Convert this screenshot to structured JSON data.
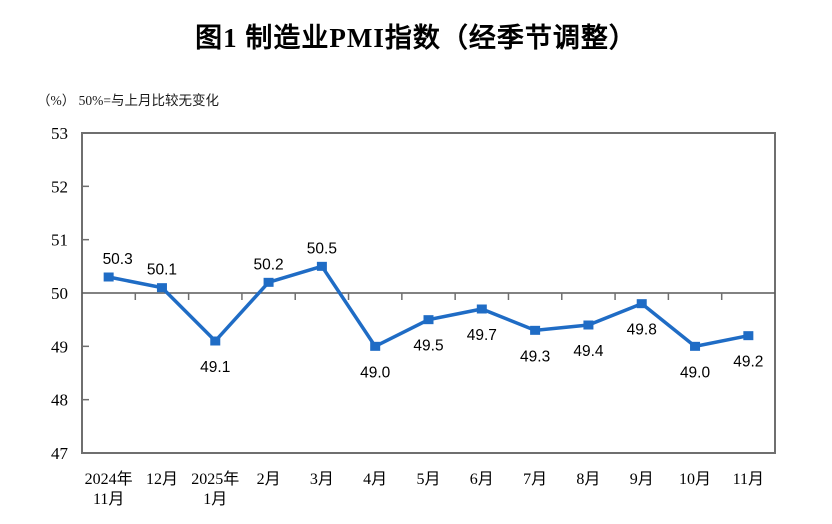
{
  "chart_data": {
    "type": "line",
    "title": "图1  制造业PMI指数（经季节调整）",
    "unit_note": "（%） 50%=与上月比较无变化",
    "categories": [
      "2024年\n11月",
      "12月",
      "2025年\n1月",
      "2月",
      "3月",
      "4月",
      "5月",
      "6月",
      "7月",
      "8月",
      "9月",
      "10月",
      "11月"
    ],
    "values": [
      50.3,
      50.1,
      49.1,
      50.2,
      50.5,
      49.0,
      49.5,
      49.7,
      49.3,
      49.4,
      49.8,
      49.0,
      49.2
    ],
    "value_labels": [
      "50.3",
      "50.1",
      "49.1",
      "50.2",
      "50.5",
      "49.0",
      "49.5",
      "49.7",
      "49.3",
      "49.4",
      "49.8",
      "49.0",
      "49.2"
    ],
    "xlabel": "",
    "ylabel": "",
    "ylim": [
      47,
      53
    ],
    "ytick_step": 1,
    "yticks": [
      47,
      48,
      49,
      50,
      51,
      52,
      53
    ],
    "reference_line": 50,
    "grid": false,
    "legend": false,
    "colors": {
      "line": "#1f6cc5",
      "marker": "#1f6cc5",
      "plot_border": "#6f6f6f",
      "reference_line": "#595959",
      "tick": "#6f6f6f",
      "text": "#000000"
    }
  }
}
